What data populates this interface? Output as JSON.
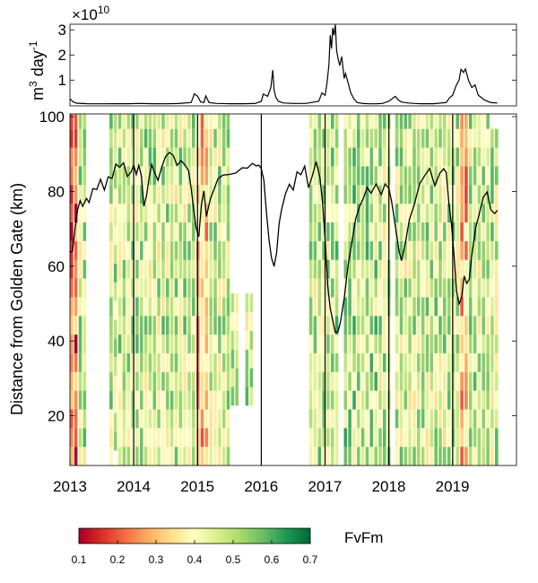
{
  "chart_data": [
    {
      "panel": "top",
      "type": "line",
      "ylabel": "m",
      "ylabel_superscript": "3",
      "ylabel_tail": " day",
      "ylabel_exponent": "-1",
      "exponent_prefix": "×10",
      "exponent_power": "10",
      "ylim": [
        0,
        3.3
      ],
      "yticks": [
        "1",
        "2",
        "3"
      ],
      "xlim": [
        2013.0,
        2020.0
      ],
      "series": [
        {
          "x": [
            2013.0,
            2013.05,
            2013.1,
            2013.2,
            2013.3,
            2013.5,
            2013.7,
            2013.9,
            2014.1,
            2014.3,
            2014.5,
            2014.7,
            2014.9,
            2014.95,
            2015.0,
            2015.05,
            2015.1,
            2015.13,
            2015.18,
            2015.3,
            2015.5,
            2015.7,
            2015.9,
            2016.0,
            2016.03,
            2016.1,
            2016.15,
            2016.18,
            2016.2,
            2016.23,
            2016.27,
            2016.35,
            2016.5,
            2016.7,
            2016.9,
            2016.95,
            2017.0,
            2017.03,
            2017.06,
            2017.08,
            2017.1,
            2017.12,
            2017.14,
            2017.16,
            2017.18,
            2017.2,
            2017.23,
            2017.26,
            2017.3,
            2017.32,
            2017.36,
            2017.4,
            2017.45,
            2017.5,
            2017.6,
            2017.7,
            2017.8,
            2017.9,
            2018.0,
            2018.1,
            2018.15,
            2018.2,
            2018.3,
            2018.4,
            2018.5,
            2018.7,
            2018.9,
            2018.95,
            2019.0,
            2019.05,
            2019.1,
            2019.13,
            2019.17,
            2019.2,
            2019.25,
            2019.3,
            2019.35,
            2019.4,
            2019.5,
            2019.6,
            2019.7
          ],
          "y": [
            0.25,
            0.12,
            0.07,
            0.06,
            0.05,
            0.05,
            0.05,
            0.05,
            0.06,
            0.05,
            0.05,
            0.06,
            0.1,
            0.45,
            0.35,
            0.12,
            0.1,
            0.38,
            0.1,
            0.06,
            0.05,
            0.05,
            0.06,
            0.15,
            0.45,
            0.35,
            0.7,
            1.4,
            0.6,
            0.3,
            0.15,
            0.08,
            0.06,
            0.06,
            0.15,
            0.5,
            0.4,
            0.9,
            1.6,
            2.8,
            2.3,
            3.2,
            2.9,
            3.3,
            2.2,
            1.9,
            1.6,
            2.0,
            1.1,
            1.3,
            0.9,
            0.5,
            0.25,
            0.1,
            0.06,
            0.05,
            0.05,
            0.06,
            0.15,
            0.35,
            0.2,
            0.12,
            0.08,
            0.06,
            0.05,
            0.05,
            0.1,
            0.3,
            0.4,
            0.75,
            1.0,
            1.45,
            1.35,
            1.5,
            1.0,
            0.7,
            0.8,
            0.4,
            0.2,
            0.1,
            0.08
          ]
        }
      ]
    },
    {
      "panel": "bottom",
      "type": "heatmap",
      "ylabel": "Distance from Golden Gate  (km)",
      "ylim": [
        6,
        100
      ],
      "yticks": [
        "20",
        "40",
        "60",
        "80",
        "100"
      ],
      "xlim": [
        2013.0,
        2020.0
      ],
      "xticks": [
        "2013",
        "2014",
        "2015",
        "2016",
        "2017",
        "2018",
        "2019"
      ],
      "vertical_lines_x": [
        2014.0,
        2015.0,
        2016.0,
        2017.0,
        2018.0,
        2019.0
      ],
      "color_scale": {
        "min": 0.1,
        "max": 0.7,
        "label": "FvFm",
        "ticks": [
          "0.1",
          "0.2",
          "0.3",
          "0.4",
          "0.5",
          "0.6",
          "0.7"
        ]
      },
      "line_series": {
        "x": [
          2013.0,
          2013.04,
          2013.08,
          2013.12,
          2013.16,
          2013.2,
          2013.26,
          2013.3,
          2013.36,
          2013.42,
          2013.48,
          2013.54,
          2013.6,
          2013.66,
          2013.72,
          2013.78,
          2013.84,
          2013.9,
          2013.96,
          2014.0,
          2014.04,
          2014.08,
          2014.12,
          2014.16,
          2014.2,
          2014.24,
          2014.28,
          2014.32,
          2014.38,
          2014.44,
          2014.5,
          2014.56,
          2014.62,
          2014.68,
          2014.74,
          2014.8,
          2014.86,
          2014.9,
          2014.94,
          2014.98,
          2015.02,
          2015.06,
          2015.1,
          2015.14,
          2015.2,
          2015.26,
          2015.32,
          2015.4,
          2015.5,
          2015.6,
          2015.7,
          2015.78,
          2015.86,
          2015.92,
          2015.96,
          2016.0,
          2016.04,
          2016.08,
          2016.12,
          2016.16,
          2016.2,
          2016.24,
          2016.28,
          2016.32,
          2016.38,
          2016.44,
          2016.5,
          2016.56,
          2016.62,
          2016.68,
          2016.74,
          2016.8,
          2016.86,
          2016.92,
          2016.96,
          2017.0,
          2017.04,
          2017.08,
          2017.12,
          2017.16,
          2017.2,
          2017.24,
          2017.3,
          2017.36,
          2017.42,
          2017.48,
          2017.54,
          2017.6,
          2017.66,
          2017.72,
          2017.8,
          2017.88,
          2017.94,
          2018.0,
          2018.04,
          2018.08,
          2018.12,
          2018.16,
          2018.2,
          2018.26,
          2018.32,
          2018.4,
          2018.48,
          2018.56,
          2018.64,
          2018.72,
          2018.8,
          2018.86,
          2018.9,
          2018.94,
          2018.98,
          2019.02,
          2019.06,
          2019.1,
          2019.14,
          2019.18,
          2019.22,
          2019.26,
          2019.3,
          2019.36,
          2019.42,
          2019.48,
          2019.54,
          2019.6,
          2019.66,
          2019.7
        ],
        "y": [
          63,
          64,
          70,
          74,
          76,
          75,
          78,
          77,
          80,
          79,
          82,
          80,
          84,
          83,
          86,
          85,
          87,
          84,
          85,
          86,
          83,
          86,
          84,
          76,
          78,
          82,
          86,
          85,
          83,
          86,
          88,
          89,
          89,
          87,
          88,
          86,
          84,
          80,
          75,
          70,
          67,
          75,
          79,
          73,
          78,
          80,
          82,
          83,
          84,
          85,
          86,
          85,
          86,
          86,
          87,
          86,
          82,
          73,
          66,
          62,
          60,
          63,
          70,
          74,
          79,
          82,
          80,
          84,
          83,
          86,
          81,
          84,
          87,
          82,
          76,
          67,
          55,
          48,
          44,
          41,
          42,
          45,
          51,
          59,
          65,
          72,
          76,
          78,
          80,
          78,
          81,
          79,
          82,
          80,
          76,
          72,
          68,
          64,
          61,
          65,
          71,
          76,
          82,
          84,
          85,
          80,
          84,
          86,
          85,
          76,
          70,
          62,
          53,
          50,
          51,
          56,
          54,
          56,
          63,
          70,
          73,
          77,
          79,
          75,
          74,
          74
        ]
      }
    }
  ]
}
